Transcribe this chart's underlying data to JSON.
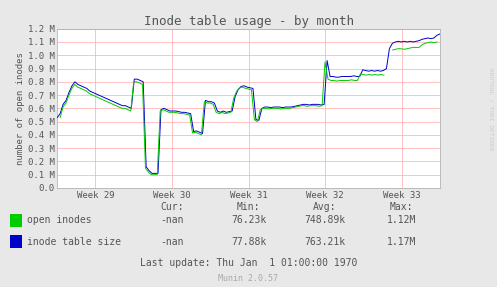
{
  "title": "Inode table usage - by month",
  "ylabel": "number of open inodes",
  "bg_color": "#e8e8e8",
  "plot_bg_color": "#ffffff",
  "grid_color": "#ffaaaa",
  "x_tick_labels": [
    "Week 29",
    "Week 30",
    "Week 31",
    "Week 32",
    "Week 33"
  ],
  "ylim": [
    0,
    1200000
  ],
  "y_ticks": [
    0,
    100000,
    200000,
    300000,
    400000,
    500000,
    600000,
    700000,
    800000,
    900000,
    1000000,
    1100000,
    1200000
  ],
  "y_tick_labels": [
    "0.0",
    "0.1 M",
    "0.2 M",
    "0.3 M",
    "0.4 M",
    "0.5 M",
    "0.6 M",
    "0.7 M",
    "0.8 M",
    "0.9 M",
    "1.0 M",
    "1.1 M",
    "1.2 M"
  ],
  "xlim": [
    0,
    1
  ],
  "legend_labels": [
    "open inodes",
    "inode table size"
  ],
  "legend_colors": [
    "#00cc00",
    "#0000cc"
  ],
  "stats_header": [
    "Cur:",
    "Min:",
    "Avg:",
    "Max:"
  ],
  "stats_open": [
    "-nan",
    "76.23k",
    "748.89k",
    "1.12M"
  ],
  "stats_table": [
    "-nan",
    "77.88k",
    "763.21k",
    "1.17M"
  ],
  "last_update": "Last update: Thu Jan  1 01:00:00 1970",
  "munin_version": "Munin 2.0.57",
  "rrdtool_text": "RRDTOOL / TOBI OETIKER",
  "open_inodes_y": [
    null,
    530000,
    610000,
    640000,
    700000,
    750000,
    780000,
    760000,
    750000,
    740000,
    730000,
    710000,
    700000,
    690000,
    680000,
    670000,
    660000,
    650000,
    640000,
    630000,
    620000,
    610000,
    600000,
    600000,
    590000,
    580000,
    800000,
    800000,
    790000,
    780000,
    150000,
    120000,
    100000,
    100000,
    100000,
    580000,
    590000,
    580000,
    570000,
    570000,
    570000,
    565000,
    560000,
    560000,
    555000,
    550000,
    415000,
    420000,
    410000,
    400000,
    650000,
    640000,
    640000,
    630000,
    570000,
    560000,
    570000,
    560000,
    565000,
    570000,
    680000,
    730000,
    755000,
    760000,
    750000,
    745000,
    740000,
    515000,
    500000,
    590000,
    600000,
    600000,
    595000,
    600000,
    600000,
    600000,
    595000,
    600000,
    600000,
    600000,
    605000,
    610000,
    615000,
    620000,
    620000,
    615000,
    620000,
    620000,
    620000,
    615000,
    620000,
    950000,
    820000,
    810000,
    810000,
    805000,
    810000,
    810000,
    810000,
    810000,
    815000,
    810000,
    810000,
    860000,
    855000,
    850000,
    855000,
    850000,
    855000,
    850000,
    855000,
    850000,
    null,
    null,
    1040000,
    1045000,
    1050000,
    1048000,
    1045000,
    1050000,
    1055000,
    1060000,
    1058000,
    1060000,
    1080000,
    1090000,
    1095000,
    1100000,
    1095000,
    1100000,
    null
  ],
  "table_size_y": [
    530000,
    560000,
    630000,
    660000,
    720000,
    770000,
    800000,
    780000,
    770000,
    760000,
    750000,
    730000,
    720000,
    710000,
    700000,
    690000,
    680000,
    670000,
    660000,
    650000,
    640000,
    630000,
    620000,
    620000,
    610000,
    600000,
    820000,
    820000,
    810000,
    800000,
    160000,
    130000,
    110000,
    110000,
    110000,
    590000,
    600000,
    590000,
    580000,
    580000,
    580000,
    575000,
    570000,
    570000,
    565000,
    560000,
    425000,
    430000,
    420000,
    410000,
    660000,
    650000,
    650000,
    640000,
    580000,
    570000,
    580000,
    570000,
    575000,
    580000,
    690000,
    740000,
    765000,
    770000,
    760000,
    755000,
    750000,
    515000,
    510000,
    600000,
    610000,
    610000,
    605000,
    610000,
    610000,
    610000,
    605000,
    610000,
    610000,
    610000,
    615000,
    620000,
    625000,
    630000,
    630000,
    625000,
    630000,
    630000,
    630000,
    625000,
    630000,
    960000,
    840000,
    840000,
    835000,
    835000,
    840000,
    840000,
    840000,
    840000,
    845000,
    840000,
    840000,
    890000,
    885000,
    880000,
    885000,
    880000,
    885000,
    880000,
    885000,
    900000,
    1050000,
    1090000,
    1100000,
    1105000,
    1100000,
    1105000,
    1100000,
    1105000,
    1100000,
    1105000,
    1110000,
    1120000,
    1125000,
    1130000,
    1125000,
    1130000,
    1150000,
    1160000
  ]
}
